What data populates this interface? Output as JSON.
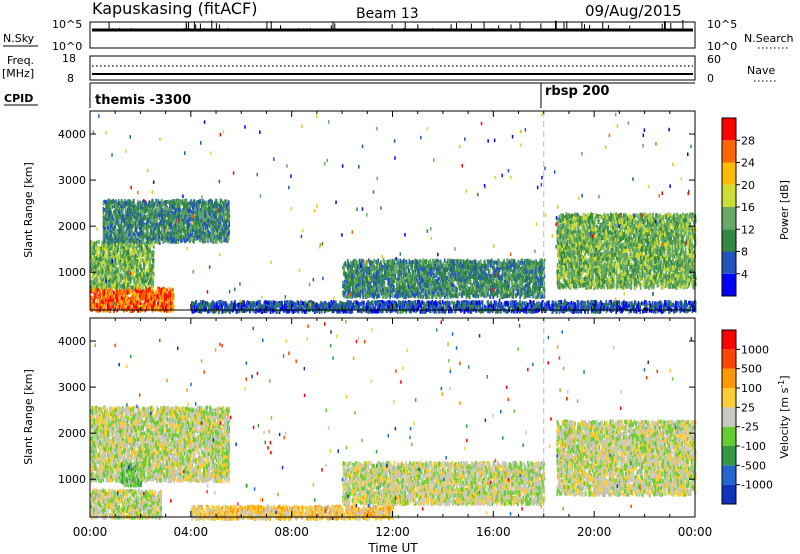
{
  "header": {
    "station": "Kapuskasing (fitACF)",
    "beam": "Beam 13",
    "date": "09/Aug/2015"
  },
  "nsky_panel": {
    "left_label": "N.Sky",
    "left_ticks": [
      "10^5",
      "10^0"
    ],
    "right_ticks": [
      "10^5",
      "10^0"
    ],
    "right_label": "N.Search"
  },
  "freq_panel": {
    "left_label_1": "Freq.",
    "left_label_2": "[MHz]",
    "left_ticks": [
      "18",
      "8"
    ],
    "right_ticks": [
      "60",
      "0"
    ],
    "right_label": "Nave"
  },
  "cpid_panel": {
    "label": "CPID",
    "mode_1": "themis -3300",
    "mode_2": "rbsp 200"
  },
  "chart_data": [
    {
      "type": "heatmap",
      "title": "",
      "ylabel": "Slant Range [km]",
      "ylim": [
        180,
        4500
      ],
      "yticks": [
        "4000",
        "3000",
        "2000",
        "1000"
      ],
      "colorbar": {
        "label": "Power [dB]",
        "ticks": [
          "28",
          "24",
          "20",
          "16",
          "12",
          "8",
          "4"
        ],
        "colors": [
          "#0000ff",
          "#2255bb",
          "#338844",
          "#66aa66",
          "#ccdd33",
          "#ffbb00",
          "#ff6600",
          "#ff0000"
        ]
      },
      "regions": [
        {
          "x": [
            0.0,
            3.3
          ],
          "y": [
            200,
            700
          ],
          "level": 6
        },
        {
          "x": [
            0.0,
            2.5
          ],
          "y": [
            700,
            1700
          ],
          "level": 3
        },
        {
          "x": [
            0.5,
            5.5
          ],
          "y": [
            1700,
            2600
          ],
          "level": 2
        },
        {
          "x": [
            10.0,
            18.0
          ],
          "y": [
            500,
            1300
          ],
          "level": 2
        },
        {
          "x": [
            18.5,
            24.0
          ],
          "y": [
            700,
            2300
          ],
          "level": 3
        },
        {
          "x": [
            4.0,
            24.0
          ],
          "y": [
            180,
            400
          ],
          "level": 1
        }
      ]
    },
    {
      "type": "heatmap",
      "title": "",
      "ylabel": "Slant Range [km]",
      "xlabel": "Time UT",
      "ylim": [
        180,
        4500
      ],
      "xlim": [
        0,
        24
      ],
      "yticks": [
        "4000",
        "3000",
        "2000",
        "1000"
      ],
      "xticks": [
        "00:00",
        "04:00",
        "08:00",
        "12:00",
        "16:00",
        "20:00",
        "00:00"
      ],
      "colorbar": {
        "label": "Velocity [m s^-1]",
        "ticks": [
          "1000",
          "500",
          "100",
          "25",
          "-25",
          "-100",
          "-500",
          "-1000"
        ],
        "colors": [
          "#1133bb",
          "#2266cc",
          "#339944",
          "#66cc33",
          "#c8c8c0",
          "#ffcc33",
          "#ff9900",
          "#ff4400",
          "#ff0000"
        ]
      },
      "regions": [
        {
          "x": [
            0.0,
            2.8
          ],
          "y": [
            200,
            800
          ],
          "level": 4
        },
        {
          "x": [
            0.0,
            5.5
          ],
          "y": [
            1000,
            2600
          ],
          "level": 4
        },
        {
          "x": [
            4.0,
            12.0
          ],
          "y": [
            180,
            450
          ],
          "level": 5
        },
        {
          "x": [
            10.0,
            18.0
          ],
          "y": [
            500,
            1400
          ],
          "level": 4
        },
        {
          "x": [
            18.5,
            24.0
          ],
          "y": [
            700,
            2300
          ],
          "level": 4
        },
        {
          "x": [
            1.2,
            2.0
          ],
          "y": [
            900,
            1400
          ],
          "level": 3
        }
      ]
    }
  ],
  "rbsp_time_hours": 18.0
}
